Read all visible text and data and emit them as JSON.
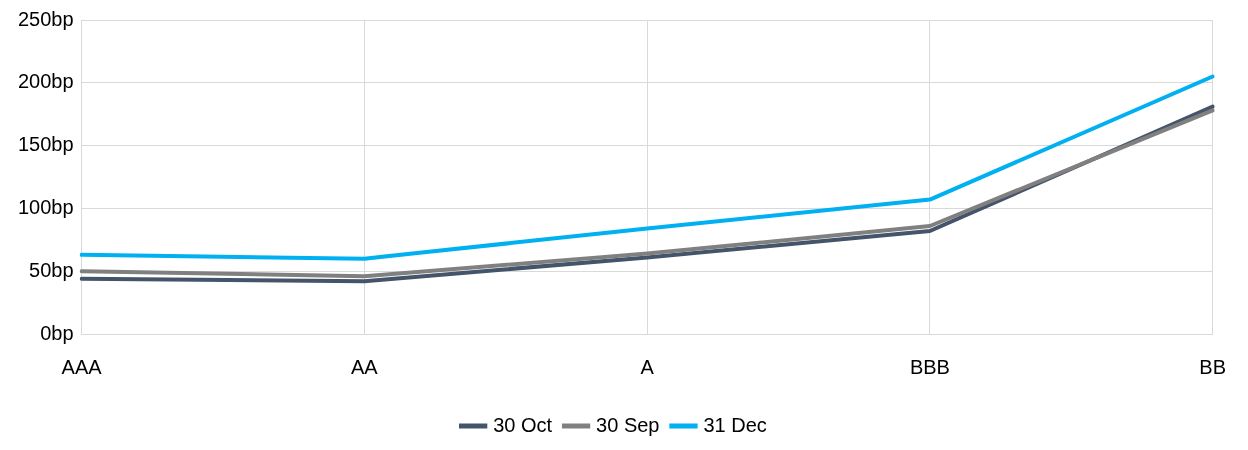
{
  "chart_data": {
    "type": "line",
    "categories": [
      "AAA",
      "AA",
      "A",
      "BBB",
      "BB"
    ],
    "series": [
      {
        "name": "30 Oct",
        "color": "#44546a",
        "values": [
          44,
          42,
          61,
          82,
          181
        ]
      },
      {
        "name": "30 Sep",
        "color": "#808080",
        "values": [
          50,
          46,
          64,
          86,
          178
        ]
      },
      {
        "name": "31 Dec",
        "color": "#00b0f0",
        "values": [
          63,
          60,
          84,
          107,
          205
        ]
      }
    ],
    "ylim": [
      0,
      250
    ],
    "yticks": [
      {
        "value": 0,
        "label": "0bp"
      },
      {
        "value": 50,
        "label": "50bp"
      },
      {
        "value": 100,
        "label": "100bp"
      },
      {
        "value": 150,
        "label": "150bp"
      },
      {
        "value": 200,
        "label": "200bp"
      },
      {
        "value": 250,
        "label": "250bp"
      }
    ],
    "grid": true,
    "legend": "bottom",
    "marker": "none",
    "line_style": "solid"
  }
}
